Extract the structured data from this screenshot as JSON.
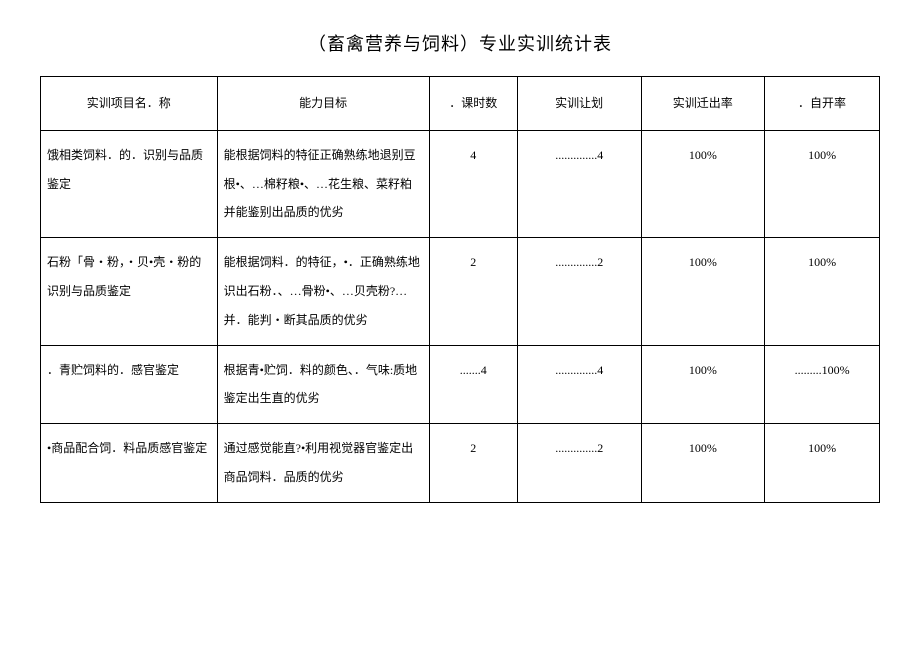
{
  "title": "（畜禽营养与饲料）专业实训统计表",
  "headers": {
    "name": "实训项目名．称",
    "target": "能力目标",
    "hours": "．课时数",
    "plan": "实训让划",
    "rate": "实训迁出率",
    "self": "．自开率"
  },
  "rows": [
    {
      "name": "饿相类饲料．的．识别与品质鉴定",
      "target": "能根据饲料的特征正确熟练地退别豆根•、…棉籽粮•、…花生粮、菜籽粕并能鉴别出品质的优劣",
      "hours": "4",
      "plan": "..............4",
      "rate": "100%",
      "self": "100%"
    },
    {
      "name": "石粉「骨・粉，・贝•壳・粉的识别与品质鉴定",
      "target": "能根据饲料．的特征，•．正确熟练地识出石粉．、…骨粉•、…贝壳粉?…并．能判・断其品质的优劣",
      "hours": "2",
      "plan": "..............2",
      "rate": "100%",
      "self": "100%"
    },
    {
      "name": "．青贮饲料的．感官鉴定",
      "target": "根据青•贮饲．料的颜色、．气味:质地鉴定出生直的优劣",
      "hours": ".......4",
      "plan": "..............4",
      "rate": "100%",
      "self": ".........100%"
    },
    {
      "name": "•商品配合饲．料品质感官鉴定",
      "target": "通过感觉能直?•利用视觉器官鉴定出商品饲料．品质的优劣",
      "hours": "2",
      "plan": "..............2",
      "rate": "100%",
      "self": "100%"
    }
  ]
}
